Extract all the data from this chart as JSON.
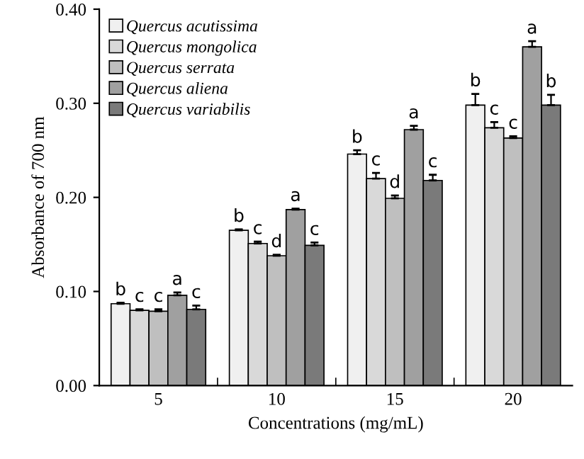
{
  "chart_data": {
    "type": "bar",
    "xlabel": "Concentrations (mg/mL)",
    "ylabel": "Absorbance of 700 nm",
    "categories": [
      "5",
      "10",
      "15",
      "20"
    ],
    "ylim": [
      0,
      0.4
    ],
    "yticks": [
      {
        "value": 0,
        "label": "0.00"
      },
      {
        "value": 0.1,
        "label": "0.10"
      },
      {
        "value": 0.2,
        "label": "0.20"
      },
      {
        "value": 0.3,
        "label": "0.30"
      },
      {
        "value": 0.4,
        "label": "0.40"
      }
    ],
    "legend": "top left",
    "grid": false,
    "series": [
      {
        "name": "Quercus acutissima",
        "color": "#f0f0f0",
        "values": [
          0.087,
          0.165,
          0.246,
          0.298
        ],
        "errors": [
          [
            0.087,
            0.088
          ],
          [
            0.165,
            0.166
          ],
          [
            0.246,
            0.25
          ],
          [
            0.298,
            0.31
          ]
        ],
        "value_labels": [
          "b",
          "b",
          "b",
          "b"
        ]
      },
      {
        "name": "Quercus mongolica",
        "color": "#d9d9d9",
        "values": [
          0.08,
          0.151,
          0.22,
          0.274
        ],
        "errors": [
          [
            0.08,
            0.081
          ],
          [
            0.151,
            0.153
          ],
          [
            0.22,
            0.226
          ],
          [
            0.274,
            0.28
          ]
        ],
        "value_labels": [
          "c",
          "c",
          "c",
          "c"
        ]
      },
      {
        "name": "Quercus serrata",
        "color": "#bfbfbf",
        "values": [
          0.079,
          0.138,
          0.199,
          0.263
        ],
        "errors": [
          [
            0.079,
            0.081
          ],
          [
            0.138,
            0.139
          ],
          [
            0.199,
            0.202
          ],
          [
            0.263,
            0.265
          ]
        ],
        "value_labels": [
          "c",
          "d",
          "d",
          "c"
        ]
      },
      {
        "name": "Quercus aliena",
        "color": "#a0a0a0",
        "values": [
          0.096,
          0.187,
          0.272,
          0.36
        ],
        "errors": [
          [
            0.096,
            0.099
          ],
          [
            0.187,
            0.188
          ],
          [
            0.272,
            0.276
          ],
          [
            0.36,
            0.366
          ]
        ],
        "value_labels": [
          "a",
          "a",
          "a",
          "a"
        ]
      },
      {
        "name": "Quercus variabilis",
        "color": "#7a7a7a",
        "values": [
          0.081,
          0.149,
          0.218,
          0.298
        ],
        "errors": [
          [
            0.081,
            0.085
          ],
          [
            0.149,
            0.152
          ],
          [
            0.218,
            0.224
          ],
          [
            0.298,
            0.309
          ]
        ],
        "value_labels": [
          "c",
          "c",
          "c",
          "b"
        ]
      }
    ]
  }
}
